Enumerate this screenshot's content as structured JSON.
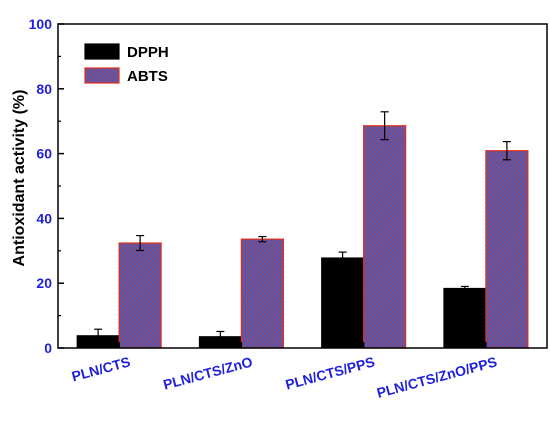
{
  "chart_data": {
    "type": "bar",
    "title": "",
    "xlabel": "",
    "ylabel": "Antioxidant activity (%)",
    "ylim": [
      0,
      100
    ],
    "yticks": [
      0,
      20,
      40,
      60,
      80,
      100
    ],
    "categories": [
      "PLN/CTS",
      "PLN/CTS/ZnO",
      "PLN/CTS/PPS",
      "PLN/CTS/ZnO/PPS"
    ],
    "series": [
      {
        "name": "DPPH",
        "values": [
          3.8,
          3.5,
          27.8,
          18.4
        ],
        "errors": [
          2.0,
          1.6,
          1.8,
          0.6
        ],
        "fill": "#000000",
        "pattern": "solid"
      },
      {
        "name": "ABTS",
        "values": [
          32.4,
          33.6,
          68.6,
          60.9
        ],
        "errors": [
          2.3,
          0.8,
          4.3,
          2.8
        ],
        "fill": "#6a5fa0",
        "stroke": "#e0301e",
        "pattern": "diagonal-hatch"
      }
    ],
    "legend_position": "top-left",
    "grid": false,
    "colors": {
      "tick_labels": "#1f1fdc",
      "axis": "#000000",
      "abts_hatch_line": "#e03a2a",
      "abts_hatch_base": "#4a58b8"
    }
  }
}
